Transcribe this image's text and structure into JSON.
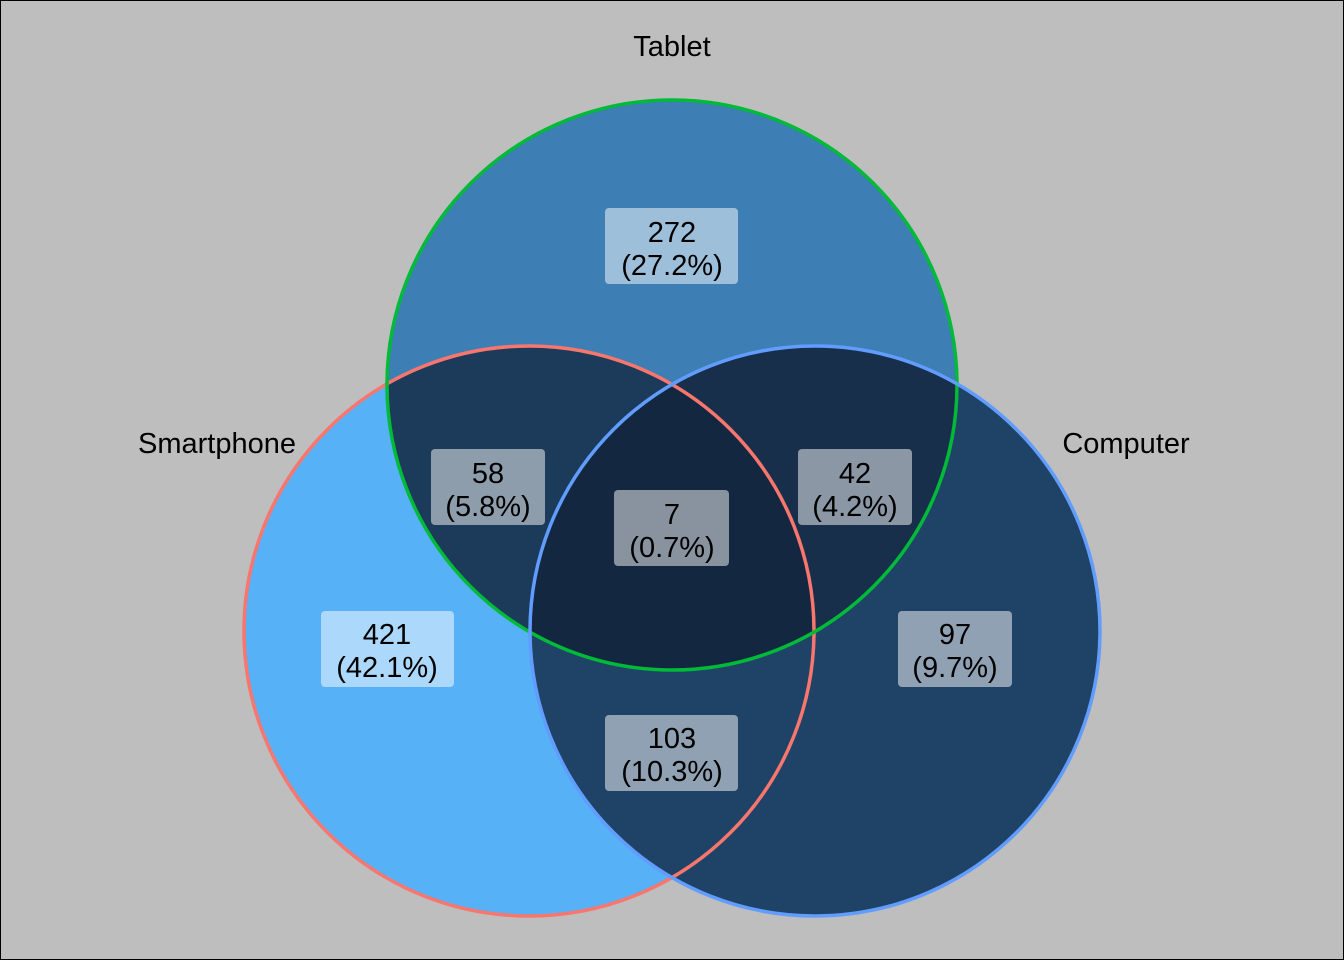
{
  "venn": {
    "sets": [
      {
        "key": "smartphone",
        "name": "Smartphone",
        "border_color": "#f8766d"
      },
      {
        "key": "tablet",
        "name": "Tablet",
        "border_color": "#00ba38"
      },
      {
        "key": "computer",
        "name": "Computer",
        "border_color": "#619cff"
      }
    ],
    "regions": [
      {
        "key": "smartphone-only",
        "sets": [
          "smartphone"
        ],
        "count": "421",
        "percent": "(42.1%)",
        "fill": "#56b1f7"
      },
      {
        "key": "tablet-only",
        "sets": [
          "tablet"
        ],
        "count": "272",
        "percent": "(27.2%)",
        "fill": "#3d7fb4"
      },
      {
        "key": "computer-only",
        "sets": [
          "computer"
        ],
        "count": "97",
        "percent": "(9.7%)",
        "fill": "#1f4366"
      },
      {
        "key": "smartphone-tablet",
        "sets": [
          "smartphone",
          "tablet"
        ],
        "count": "58",
        "percent": "(5.8%)",
        "fill": "#1c3a59"
      },
      {
        "key": "tablet-computer",
        "sets": [
          "tablet",
          "computer"
        ],
        "count": "42",
        "percent": "(4.2%)",
        "fill": "#172f4b"
      },
      {
        "key": "smartphone-computer",
        "sets": [
          "smartphone",
          "computer"
        ],
        "count": "103",
        "percent": "(10.3%)",
        "fill": "#1f4366"
      },
      {
        "key": "all-three",
        "sets": [
          "smartphone",
          "tablet",
          "computer"
        ],
        "count": "7",
        "percent": "(0.7%)",
        "fill": "#132740"
      }
    ]
  }
}
